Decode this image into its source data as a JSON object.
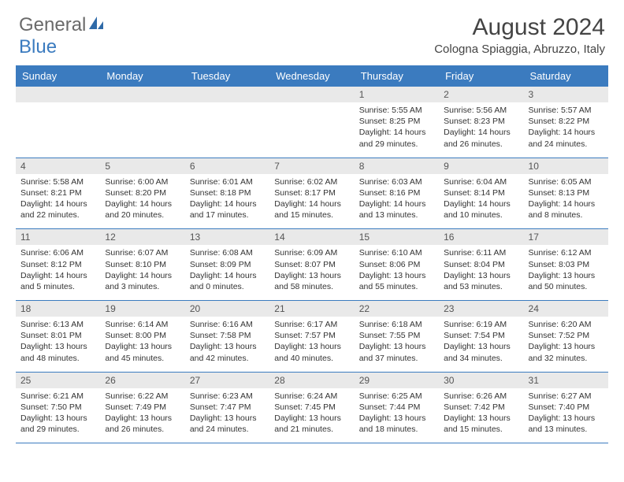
{
  "brand": {
    "part1": "General",
    "part2": "Blue"
  },
  "title": "August 2024",
  "location": "Cologna Spiaggia, Abruzzo, Italy",
  "colors": {
    "header_bg": "#3b7bbf",
    "header_text": "#ffffff",
    "date_band_bg": "#e9e9e9",
    "rule": "#3b7bbf",
    "body_text": "#333333",
    "title_text": "#444444",
    "logo_gray": "#6a6a6a",
    "logo_blue": "#3b7bbf",
    "background": "#ffffff"
  },
  "typography": {
    "month_title_size_pt": 22,
    "location_size_pt": 11,
    "weekday_size_pt": 10,
    "date_size_pt": 9,
    "cell_text_size_pt": 8
  },
  "weekdays": [
    "Sunday",
    "Monday",
    "Tuesday",
    "Wednesday",
    "Thursday",
    "Friday",
    "Saturday"
  ],
  "weeks": [
    [
      {},
      {},
      {},
      {},
      {
        "date": "1",
        "sunrise": "Sunrise: 5:55 AM",
        "sunset": "Sunset: 8:25 PM",
        "daylight": "Daylight: 14 hours and 29 minutes."
      },
      {
        "date": "2",
        "sunrise": "Sunrise: 5:56 AM",
        "sunset": "Sunset: 8:23 PM",
        "daylight": "Daylight: 14 hours and 26 minutes."
      },
      {
        "date": "3",
        "sunrise": "Sunrise: 5:57 AM",
        "sunset": "Sunset: 8:22 PM",
        "daylight": "Daylight: 14 hours and 24 minutes."
      }
    ],
    [
      {
        "date": "4",
        "sunrise": "Sunrise: 5:58 AM",
        "sunset": "Sunset: 8:21 PM",
        "daylight": "Daylight: 14 hours and 22 minutes."
      },
      {
        "date": "5",
        "sunrise": "Sunrise: 6:00 AM",
        "sunset": "Sunset: 8:20 PM",
        "daylight": "Daylight: 14 hours and 20 minutes."
      },
      {
        "date": "6",
        "sunrise": "Sunrise: 6:01 AM",
        "sunset": "Sunset: 8:18 PM",
        "daylight": "Daylight: 14 hours and 17 minutes."
      },
      {
        "date": "7",
        "sunrise": "Sunrise: 6:02 AM",
        "sunset": "Sunset: 8:17 PM",
        "daylight": "Daylight: 14 hours and 15 minutes."
      },
      {
        "date": "8",
        "sunrise": "Sunrise: 6:03 AM",
        "sunset": "Sunset: 8:16 PM",
        "daylight": "Daylight: 14 hours and 13 minutes."
      },
      {
        "date": "9",
        "sunrise": "Sunrise: 6:04 AM",
        "sunset": "Sunset: 8:14 PM",
        "daylight": "Daylight: 14 hours and 10 minutes."
      },
      {
        "date": "10",
        "sunrise": "Sunrise: 6:05 AM",
        "sunset": "Sunset: 8:13 PM",
        "daylight": "Daylight: 14 hours and 8 minutes."
      }
    ],
    [
      {
        "date": "11",
        "sunrise": "Sunrise: 6:06 AM",
        "sunset": "Sunset: 8:12 PM",
        "daylight": "Daylight: 14 hours and 5 minutes."
      },
      {
        "date": "12",
        "sunrise": "Sunrise: 6:07 AM",
        "sunset": "Sunset: 8:10 PM",
        "daylight": "Daylight: 14 hours and 3 minutes."
      },
      {
        "date": "13",
        "sunrise": "Sunrise: 6:08 AM",
        "sunset": "Sunset: 8:09 PM",
        "daylight": "Daylight: 14 hours and 0 minutes."
      },
      {
        "date": "14",
        "sunrise": "Sunrise: 6:09 AM",
        "sunset": "Sunset: 8:07 PM",
        "daylight": "Daylight: 13 hours and 58 minutes."
      },
      {
        "date": "15",
        "sunrise": "Sunrise: 6:10 AM",
        "sunset": "Sunset: 8:06 PM",
        "daylight": "Daylight: 13 hours and 55 minutes."
      },
      {
        "date": "16",
        "sunrise": "Sunrise: 6:11 AM",
        "sunset": "Sunset: 8:04 PM",
        "daylight": "Daylight: 13 hours and 53 minutes."
      },
      {
        "date": "17",
        "sunrise": "Sunrise: 6:12 AM",
        "sunset": "Sunset: 8:03 PM",
        "daylight": "Daylight: 13 hours and 50 minutes."
      }
    ],
    [
      {
        "date": "18",
        "sunrise": "Sunrise: 6:13 AM",
        "sunset": "Sunset: 8:01 PM",
        "daylight": "Daylight: 13 hours and 48 minutes."
      },
      {
        "date": "19",
        "sunrise": "Sunrise: 6:14 AM",
        "sunset": "Sunset: 8:00 PM",
        "daylight": "Daylight: 13 hours and 45 minutes."
      },
      {
        "date": "20",
        "sunrise": "Sunrise: 6:16 AM",
        "sunset": "Sunset: 7:58 PM",
        "daylight": "Daylight: 13 hours and 42 minutes."
      },
      {
        "date": "21",
        "sunrise": "Sunrise: 6:17 AM",
        "sunset": "Sunset: 7:57 PM",
        "daylight": "Daylight: 13 hours and 40 minutes."
      },
      {
        "date": "22",
        "sunrise": "Sunrise: 6:18 AM",
        "sunset": "Sunset: 7:55 PM",
        "daylight": "Daylight: 13 hours and 37 minutes."
      },
      {
        "date": "23",
        "sunrise": "Sunrise: 6:19 AM",
        "sunset": "Sunset: 7:54 PM",
        "daylight": "Daylight: 13 hours and 34 minutes."
      },
      {
        "date": "24",
        "sunrise": "Sunrise: 6:20 AM",
        "sunset": "Sunset: 7:52 PM",
        "daylight": "Daylight: 13 hours and 32 minutes."
      }
    ],
    [
      {
        "date": "25",
        "sunrise": "Sunrise: 6:21 AM",
        "sunset": "Sunset: 7:50 PM",
        "daylight": "Daylight: 13 hours and 29 minutes."
      },
      {
        "date": "26",
        "sunrise": "Sunrise: 6:22 AM",
        "sunset": "Sunset: 7:49 PM",
        "daylight": "Daylight: 13 hours and 26 minutes."
      },
      {
        "date": "27",
        "sunrise": "Sunrise: 6:23 AM",
        "sunset": "Sunset: 7:47 PM",
        "daylight": "Daylight: 13 hours and 24 minutes."
      },
      {
        "date": "28",
        "sunrise": "Sunrise: 6:24 AM",
        "sunset": "Sunset: 7:45 PM",
        "daylight": "Daylight: 13 hours and 21 minutes."
      },
      {
        "date": "29",
        "sunrise": "Sunrise: 6:25 AM",
        "sunset": "Sunset: 7:44 PM",
        "daylight": "Daylight: 13 hours and 18 minutes."
      },
      {
        "date": "30",
        "sunrise": "Sunrise: 6:26 AM",
        "sunset": "Sunset: 7:42 PM",
        "daylight": "Daylight: 13 hours and 15 minutes."
      },
      {
        "date": "31",
        "sunrise": "Sunrise: 6:27 AM",
        "sunset": "Sunset: 7:40 PM",
        "daylight": "Daylight: 13 hours and 13 minutes."
      }
    ]
  ]
}
